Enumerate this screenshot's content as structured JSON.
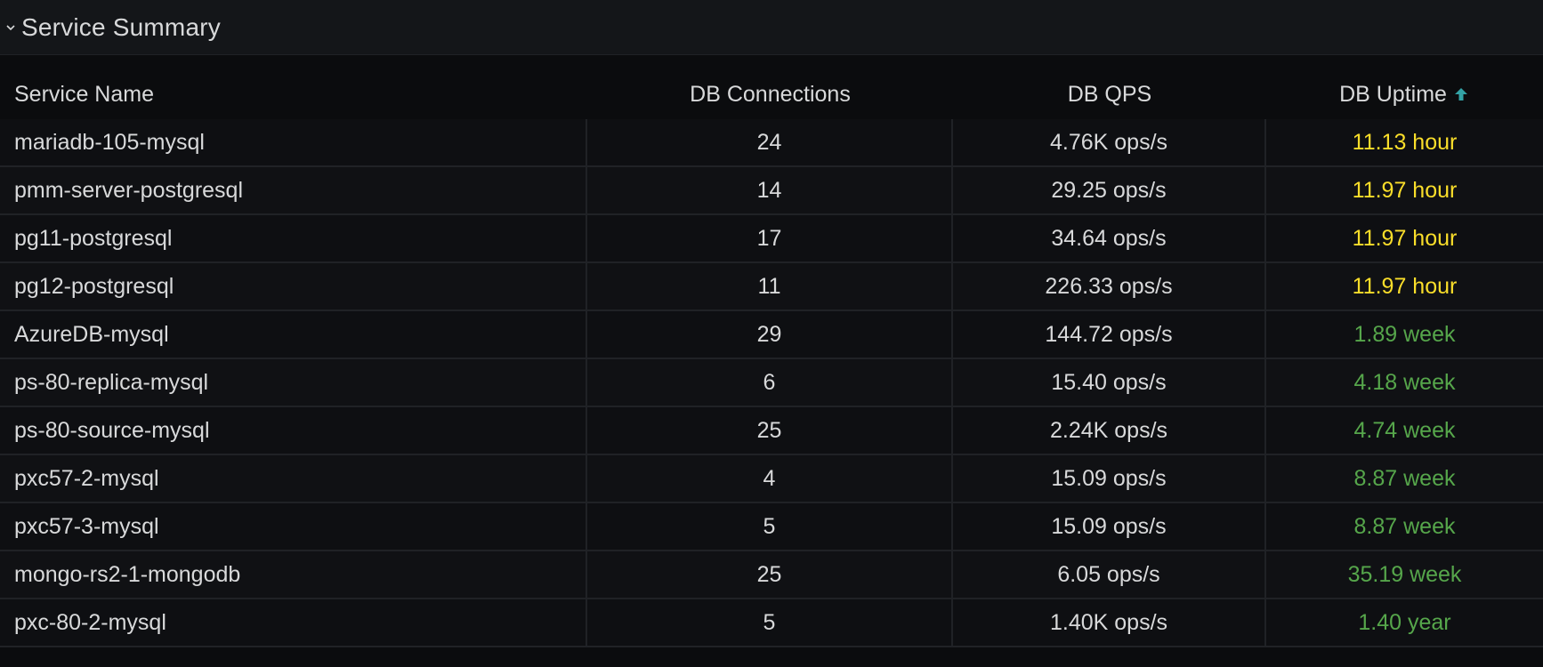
{
  "panel": {
    "title": "Service Summary",
    "collapse_icon": "chevron-down-icon"
  },
  "colors": {
    "uptime_hours": "#fade2a",
    "uptime_weeks": "#56a64b",
    "sort_arrow": "#33a2a5"
  },
  "table": {
    "columns": [
      {
        "key": "name",
        "label": "Service Name"
      },
      {
        "key": "connections",
        "label": "DB Connections"
      },
      {
        "key": "qps",
        "label": "DB QPS"
      },
      {
        "key": "uptime",
        "label": "DB Uptime",
        "sort": "ascending",
        "sort_icon": "arrow-up-icon"
      }
    ],
    "rows": [
      {
        "name": "mariadb-105-mysql",
        "connections": "24",
        "qps": "4.76K ops/s",
        "uptime": "11.13 hour",
        "uptime_color": "#fade2a"
      },
      {
        "name": "pmm-server-postgresql",
        "connections": "14",
        "qps": "29.25 ops/s",
        "uptime": "11.97 hour",
        "uptime_color": "#fade2a"
      },
      {
        "name": "pg11-postgresql",
        "connections": "17",
        "qps": "34.64 ops/s",
        "uptime": "11.97 hour",
        "uptime_color": "#fade2a"
      },
      {
        "name": "pg12-postgresql",
        "connections": "11",
        "qps": "226.33 ops/s",
        "uptime": "11.97 hour",
        "uptime_color": "#fade2a"
      },
      {
        "name": "AzureDB-mysql",
        "connections": "29",
        "qps": "144.72 ops/s",
        "uptime": "1.89 week",
        "uptime_color": "#56a64b"
      },
      {
        "name": "ps-80-replica-mysql",
        "connections": "6",
        "qps": "15.40 ops/s",
        "uptime": "4.18 week",
        "uptime_color": "#56a64b"
      },
      {
        "name": "ps-80-source-mysql",
        "connections": "25",
        "qps": "2.24K ops/s",
        "uptime": "4.74 week",
        "uptime_color": "#56a64b"
      },
      {
        "name": "pxc57-2-mysql",
        "connections": "4",
        "qps": "15.09 ops/s",
        "uptime": "8.87 week",
        "uptime_color": "#56a64b"
      },
      {
        "name": "pxc57-3-mysql",
        "connections": "5",
        "qps": "15.09 ops/s",
        "uptime": "8.87 week",
        "uptime_color": "#56a64b"
      },
      {
        "name": "mongo-rs2-1-mongodb",
        "connections": "25",
        "qps": "6.05 ops/s",
        "uptime": "35.19 week",
        "uptime_color": "#56a64b"
      },
      {
        "name": "pxc-80-2-mysql",
        "connections": "5",
        "qps": "1.40K ops/s",
        "uptime": "1.40 year",
        "uptime_color": "#56a64b"
      }
    ]
  }
}
